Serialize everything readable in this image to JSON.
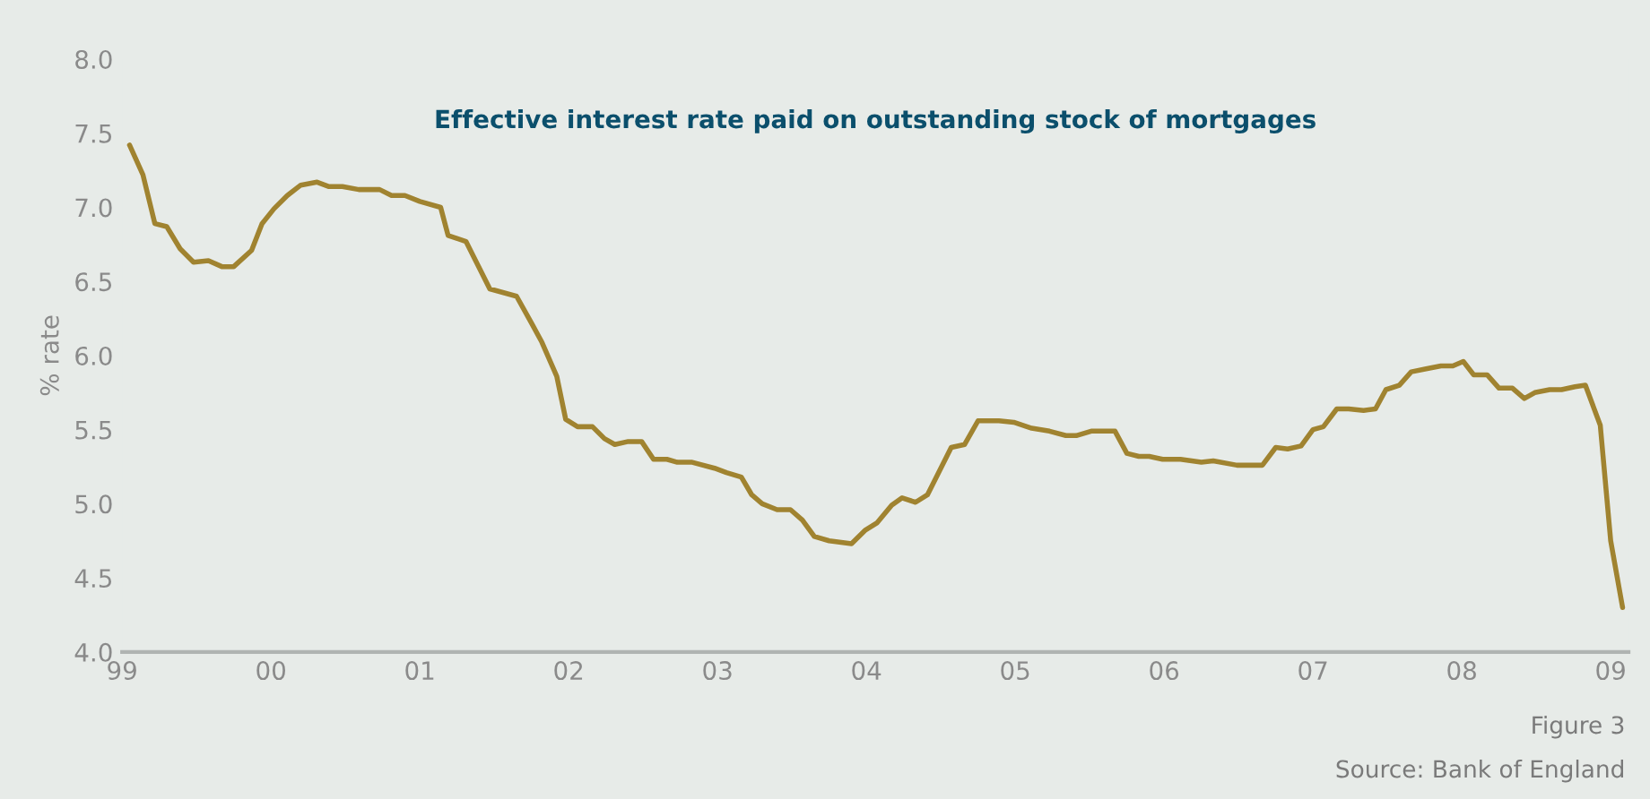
{
  "chart_data": {
    "type": "line",
    "title": "Effective interest rate paid on outstanding stock of mortgages",
    "ylabel": "% rate",
    "annotations": [
      "Figure 3",
      "Source: Bank of England"
    ],
    "xlim": [
      1999,
      2009.12
    ],
    "ylim": [
      4.0,
      8.0
    ],
    "xticks": [
      {
        "value": 1999,
        "label": "99"
      },
      {
        "value": 2000,
        "label": "00"
      },
      {
        "value": 2001,
        "label": "01"
      },
      {
        "value": 2002,
        "label": "02"
      },
      {
        "value": 2003,
        "label": "03"
      },
      {
        "value": 2004,
        "label": "04"
      },
      {
        "value": 2005,
        "label": "05"
      },
      {
        "value": 2006,
        "label": "06"
      },
      {
        "value": 2007,
        "label": "07"
      },
      {
        "value": 2008,
        "label": "08"
      },
      {
        "value": 2009,
        "label": "09"
      }
    ],
    "yticks": [
      {
        "value": 4.0,
        "label": "4.0"
      },
      {
        "value": 4.5,
        "label": "4.5"
      },
      {
        "value": 5.0,
        "label": "5.0"
      },
      {
        "value": 5.5,
        "label": "5.5"
      },
      {
        "value": 6.0,
        "label": "6.0"
      },
      {
        "value": 6.5,
        "label": "6.5"
      },
      {
        "value": 7.0,
        "label": "7.0"
      },
      {
        "value": 7.5,
        "label": "7.5"
      },
      {
        "value": 8.0,
        "label": "8.0"
      }
    ],
    "grid": false,
    "legend": false,
    "marker": "none",
    "line_style": "solid",
    "series": [
      {
        "color": "#a08330",
        "x": [
          1999.05,
          1999.14,
          1999.22,
          1999.3,
          1999.39,
          1999.48,
          1999.58,
          1999.67,
          1999.75,
          1999.87,
          1999.94,
          2000.02,
          2000.11,
          2000.2,
          2000.31,
          2000.39,
          2000.48,
          2000.59,
          2000.73,
          2000.81,
          2000.9,
          2001.0,
          2001.14,
          2001.19,
          2001.31,
          2001.47,
          2001.65,
          2001.75,
          2001.82,
          2001.92,
          2001.98,
          2002.06,
          2002.16,
          2002.24,
          2002.31,
          2002.4,
          2002.49,
          2002.57,
          2002.66,
          2002.73,
          2002.83,
          2002.98,
          2003.06,
          2003.16,
          2003.23,
          2003.3,
          2003.4,
          2003.49,
          2003.57,
          2003.65,
          2003.75,
          2003.9,
          2003.99,
          2004.07,
          2004.17,
          2004.24,
          2004.33,
          2004.41,
          2004.57,
          2004.66,
          2004.75,
          2004.89,
          2004.99,
          2005.11,
          2005.23,
          2005.34,
          2005.41,
          2005.51,
          2005.67,
          2005.75,
          2005.83,
          2005.9,
          2005.99,
          2006.11,
          2006.25,
          2006.33,
          2006.49,
          2006.66,
          2006.75,
          2006.83,
          2006.92,
          2007.0,
          2007.07,
          2007.16,
          2007.24,
          2007.34,
          2007.42,
          2007.49,
          2007.58,
          2007.66,
          2007.76,
          2007.86,
          2007.94,
          2008.01,
          2008.08,
          2008.17,
          2008.25,
          2008.34,
          2008.42,
          2008.49,
          2008.59,
          2008.67,
          2008.76,
          2008.83,
          2008.93,
          2009.0,
          2009.08
        ],
        "values": [
          7.42,
          7.22,
          6.89,
          6.87,
          6.72,
          6.63,
          6.64,
          6.6,
          6.6,
          6.71,
          6.89,
          6.99,
          7.08,
          7.15,
          7.17,
          7.14,
          7.14,
          7.12,
          7.12,
          7.08,
          7.08,
          7.04,
          7.0,
          6.81,
          6.77,
          6.45,
          6.4,
          6.22,
          6.09,
          5.86,
          5.57,
          5.52,
          5.52,
          5.44,
          5.4,
          5.42,
          5.42,
          5.3,
          5.3,
          5.28,
          5.28,
          5.24,
          5.21,
          5.18,
          5.06,
          5.0,
          4.96,
          4.96,
          4.89,
          4.78,
          4.75,
          4.73,
          4.82,
          4.87,
          4.99,
          5.04,
          5.01,
          5.06,
          5.38,
          5.4,
          5.56,
          5.56,
          5.55,
          5.51,
          5.49,
          5.46,
          5.46,
          5.49,
          5.49,
          5.34,
          5.32,
          5.32,
          5.3,
          5.3,
          5.28,
          5.29,
          5.26,
          5.26,
          5.38,
          5.37,
          5.39,
          5.5,
          5.52,
          5.64,
          5.64,
          5.63,
          5.64,
          5.77,
          5.8,
          5.89,
          5.91,
          5.93,
          5.93,
          5.96,
          5.87,
          5.87,
          5.78,
          5.78,
          5.71,
          5.75,
          5.77,
          5.77,
          5.79,
          5.8,
          5.53,
          4.75,
          4.3
        ]
      }
    ]
  }
}
